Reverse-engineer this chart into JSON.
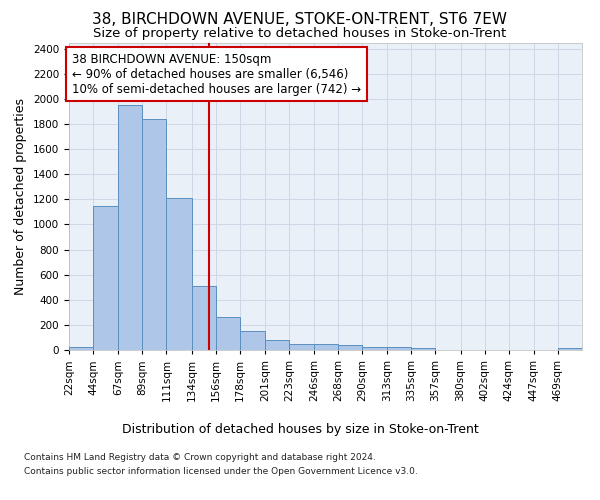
{
  "title_line1": "38, BIRCHDOWN AVENUE, STOKE-ON-TRENT, ST6 7EW",
  "title_line2": "Size of property relative to detached houses in Stoke-on-Trent",
  "xlabel": "Distribution of detached houses by size in Stoke-on-Trent",
  "ylabel": "Number of detached properties",
  "bin_labels": [
    "22sqm",
    "44sqm",
    "67sqm",
    "89sqm",
    "111sqm",
    "134sqm",
    "156sqm",
    "178sqm",
    "201sqm",
    "223sqm",
    "246sqm",
    "268sqm",
    "290sqm",
    "313sqm",
    "335sqm",
    "357sqm",
    "380sqm",
    "402sqm",
    "424sqm",
    "447sqm",
    "469sqm"
  ],
  "bin_edges": [
    22,
    44,
    67,
    89,
    111,
    134,
    156,
    178,
    201,
    223,
    246,
    268,
    290,
    313,
    335,
    357,
    380,
    402,
    424,
    447,
    469
  ],
  "bar_heights": [
    25,
    1150,
    1950,
    1840,
    1210,
    510,
    265,
    155,
    80,
    50,
    45,
    40,
    20,
    25,
    15,
    0,
    0,
    0,
    0,
    0,
    18
  ],
  "bar_color": "#aec6e8",
  "bar_edge_color": "#5a8fc0",
  "vline_x": 150,
  "vline_color": "#cc0000",
  "annotation_text": "38 BIRCHDOWN AVENUE: 150sqm\n← 90% of detached houses are smaller (6,546)\n10% of semi-detached houses are larger (742) →",
  "annotation_box_color": "white",
  "annotation_box_edge": "#cc0000",
  "ylim": [
    0,
    2450
  ],
  "yticks": [
    0,
    200,
    400,
    600,
    800,
    1000,
    1200,
    1400,
    1600,
    1800,
    2000,
    2200,
    2400
  ],
  "grid_color": "#d0d8e8",
  "background_color": "#eaf0f8",
  "footer_line1": "Contains HM Land Registry data © Crown copyright and database right 2024.",
  "footer_line2": "Contains public sector information licensed under the Open Government Licence v3.0.",
  "title_fontsize": 11,
  "subtitle_fontsize": 9.5,
  "axis_label_fontsize": 9,
  "tick_fontsize": 7.5,
  "annotation_fontsize": 8.5,
  "footer_fontsize": 6.5
}
